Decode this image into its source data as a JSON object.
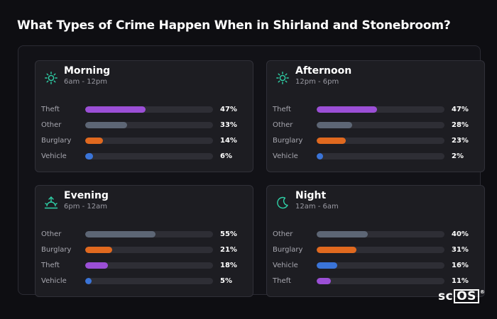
{
  "title": "What Types of Crime Happen When in Shirland and Stonebroom?",
  "logo": {
    "prefix": "sc",
    "boxed": "OS",
    "mark": "®"
  },
  "colors": {
    "Theft": "#9b4fd6",
    "Other": "#5d6675",
    "Burglary": "#e0691f",
    "Vehicle": "#3a74d8",
    "icon": "#2fd2a8"
  },
  "chart_data": [
    {
      "type": "bar",
      "title": "Morning",
      "subtitle": "6am - 12pm",
      "icon": "sun-icon",
      "categories": [
        "Theft",
        "Other",
        "Burglary",
        "Vehicle"
      ],
      "values": [
        47,
        33,
        14,
        6
      ],
      "labels": [
        "47%",
        "33%",
        "14%",
        "6%"
      ],
      "xlim": [
        0,
        100
      ]
    },
    {
      "type": "bar",
      "title": "Afternoon",
      "subtitle": "12pm - 6pm",
      "icon": "sun-icon",
      "categories": [
        "Theft",
        "Other",
        "Burglary",
        "Vehicle"
      ],
      "values": [
        47,
        28,
        23,
        2
      ],
      "labels": [
        "47%",
        "28%",
        "23%",
        "2%"
      ],
      "xlim": [
        0,
        100
      ]
    },
    {
      "type": "bar",
      "title": "Evening",
      "subtitle": "6pm - 12am",
      "icon": "sunset-icon",
      "categories": [
        "Other",
        "Burglary",
        "Theft",
        "Vehicle"
      ],
      "values": [
        55,
        21,
        18,
        5
      ],
      "labels": [
        "55%",
        "21%",
        "18%",
        "5%"
      ],
      "xlim": [
        0,
        100
      ]
    },
    {
      "type": "bar",
      "title": "Night",
      "subtitle": "12am - 6am",
      "icon": "moon-icon",
      "categories": [
        "Other",
        "Burglary",
        "Vehicle",
        "Theft"
      ],
      "values": [
        40,
        31,
        16,
        11
      ],
      "labels": [
        "40%",
        "31%",
        "16%",
        "11%"
      ],
      "xlim": [
        0,
        100
      ]
    }
  ]
}
